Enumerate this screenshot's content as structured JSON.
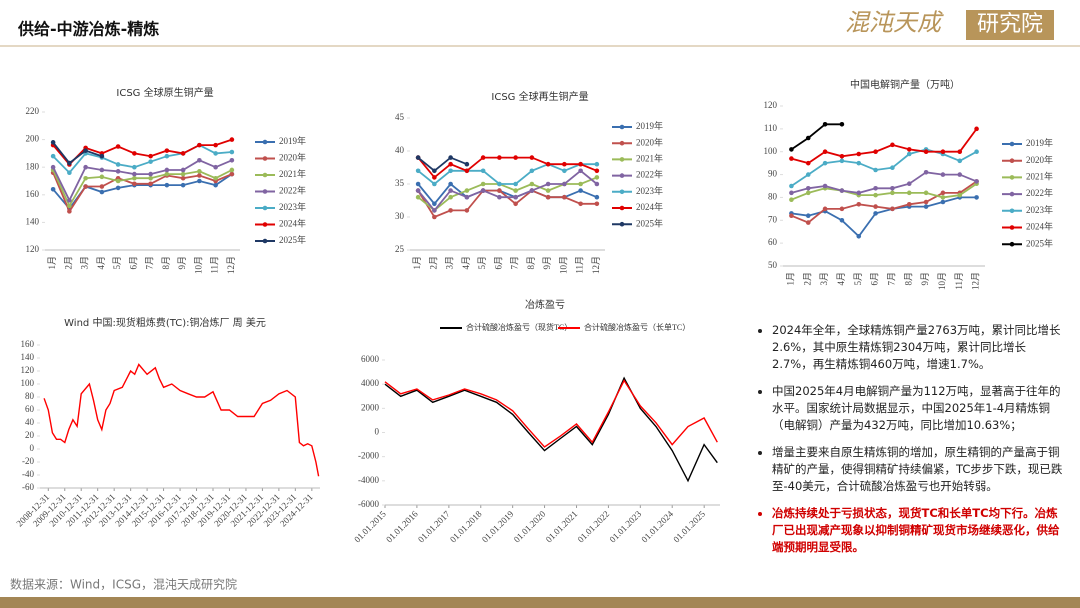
{
  "header": {
    "title": "供给-中游冶炼-精炼"
  },
  "logo": {
    "name": "混沌天成",
    "sub": "研究院"
  },
  "chart_data": [
    {
      "type": "line",
      "title": "ICSG 全球原生铜产量",
      "markers": true,
      "legend": "right",
      "categories": [
        "1月",
        "2月",
        "3月",
        "4月",
        "5月",
        "6月",
        "7月",
        "8月",
        "9月",
        "10月",
        "11月",
        "12月"
      ],
      "ylim": [
        120,
        220
      ],
      "yticks": [
        120,
        140,
        160,
        180,
        200,
        220
      ],
      "series": [
        {
          "name": "2019年",
          "color": "#3a6fb0",
          "values": [
            164,
            150,
            166,
            162,
            165,
            167,
            167,
            167,
            167,
            170,
            167,
            175
          ]
        },
        {
          "name": "2020年",
          "color": "#c0504d",
          "values": [
            176,
            148,
            166,
            166,
            172,
            168,
            168,
            174,
            172,
            174,
            170,
            175
          ]
        },
        {
          "name": "2021年",
          "color": "#9bbb59",
          "values": [
            178,
            152,
            172,
            173,
            170,
            172,
            172,
            175,
            175,
            177,
            172,
            178
          ]
        },
        {
          "name": "2022年",
          "color": "#8064a2",
          "values": [
            180,
            156,
            180,
            178,
            177,
            175,
            175,
            178,
            178,
            185,
            180,
            185
          ]
        },
        {
          "name": "2023年",
          "color": "#4bacc6",
          "values": [
            188,
            176,
            190,
            187,
            182,
            180,
            184,
            188,
            190,
            196,
            190,
            191
          ]
        },
        {
          "name": "2024年",
          "color": "#e00000",
          "values": [
            196,
            182,
            194,
            190,
            195,
            190,
            188,
            192,
            190,
            196,
            196,
            200
          ]
        },
        {
          "name": "2025年",
          "color": "#1f3864",
          "values": [
            198,
            183,
            192,
            188,
            null,
            null,
            null,
            null,
            null,
            null,
            null,
            null
          ]
        }
      ]
    },
    {
      "type": "line",
      "title": "ICSG 全球再生铜产量",
      "markers": true,
      "legend": "right",
      "categories": [
        "1月",
        "2月",
        "3月",
        "4月",
        "5月",
        "6月",
        "7月",
        "8月",
        "9月",
        "10月",
        "11月",
        "12月"
      ],
      "ylim": [
        25,
        45
      ],
      "yticks": [
        25,
        30,
        35,
        40,
        45
      ],
      "series": [
        {
          "name": "2019年",
          "color": "#3a6fb0",
          "values": [
            35,
            32,
            35,
            33,
            34,
            34,
            33,
            34,
            33,
            33,
            34,
            33
          ]
        },
        {
          "name": "2020年",
          "color": "#c0504d",
          "values": [
            34,
            30,
            31,
            31,
            34,
            34,
            32,
            34,
            33,
            33,
            32,
            32
          ]
        },
        {
          "name": "2021年",
          "color": "#9bbb59",
          "values": [
            33,
            31,
            33,
            34,
            35,
            35,
            34,
            35,
            34,
            35,
            35,
            36
          ]
        },
        {
          "name": "2022年",
          "color": "#8064a2",
          "values": [
            34,
            31,
            34,
            33,
            34,
            33,
            33,
            34,
            35,
            35,
            37,
            35
          ]
        },
        {
          "name": "2023年",
          "color": "#4bacc6",
          "values": [
            37,
            35,
            37,
            37,
            37,
            35,
            35,
            37,
            38,
            37,
            38,
            38
          ]
        },
        {
          "name": "2024年",
          "color": "#e00000",
          "values": [
            39,
            36,
            38,
            37,
            39,
            39,
            39,
            39,
            38,
            38,
            38,
            37
          ]
        },
        {
          "name": "2025年",
          "color": "#1f3864",
          "values": [
            39,
            37,
            39,
            38,
            null,
            null,
            null,
            null,
            null,
            null,
            null,
            null
          ]
        }
      ]
    },
    {
      "type": "line",
      "title": "中国电解铜产量（万吨）",
      "markers": true,
      "legend": "right",
      "categories": [
        "1月",
        "2月",
        "3月",
        "4月",
        "5月",
        "6月",
        "7月",
        "8月",
        "9月",
        "10月",
        "11月",
        "12月"
      ],
      "ylim": [
        50,
        120
      ],
      "yticks": [
        50,
        60,
        70,
        80,
        90,
        100,
        110,
        120
      ],
      "series": [
        {
          "name": "2019年",
          "color": "#3a6fb0",
          "values": [
            73,
            72,
            74,
            70,
            63,
            73,
            75,
            76,
            76,
            78,
            80,
            80
          ]
        },
        {
          "name": "2020年",
          "color": "#c0504d",
          "values": [
            72,
            69,
            75,
            75,
            77,
            76,
            75,
            77,
            78,
            82,
            82,
            87
          ]
        },
        {
          "name": "2021年",
          "color": "#9bbb59",
          "values": [
            79,
            82,
            84,
            83,
            81,
            81,
            82,
            82,
            82,
            80,
            81,
            86
          ]
        },
        {
          "name": "2022年",
          "color": "#8064a2",
          "values": [
            82,
            84,
            85,
            83,
            82,
            84,
            84,
            86,
            91,
            90,
            90,
            87
          ]
        },
        {
          "name": "2023年",
          "color": "#4bacc6",
          "values": [
            85,
            90,
            95,
            96,
            95,
            92,
            93,
            99,
            101,
            99,
            96,
            100
          ]
        },
        {
          "name": "2024年",
          "color": "#e00000",
          "values": [
            97,
            95,
            100,
            98,
            99,
            100,
            103,
            101,
            100,
            100,
            100,
            110
          ]
        },
        {
          "name": "2025年",
          "color": "#000000",
          "values": [
            101,
            106,
            112,
            112,
            null,
            null,
            null,
            null,
            null,
            null,
            null,
            null
          ]
        }
      ]
    },
    {
      "type": "line",
      "title": "Wind 中国:现货粗炼费(TC):铜冶炼厂 周 美元",
      "markers": false,
      "x": [
        "2008-09-30",
        "2008-12-31",
        "2009-03-31",
        "2009-06-30",
        "2009-09-30",
        "2009-12-31",
        "2010-03-31",
        "2010-06-30",
        "2010-09-30",
        "2010-12-31",
        "2011-06-30",
        "2011-09-30",
        "2011-12-31",
        "2012-03-31",
        "2012-06-30",
        "2012-09-30",
        "2012-12-31",
        "2013-06-30",
        "2013-12-31",
        "2014-03-31",
        "2014-06-30",
        "2014-12-31",
        "2015-06-30",
        "2015-09-30",
        "2015-12-31",
        "2016-06-30",
        "2016-12-31",
        "2017-06-30",
        "2017-12-31",
        "2018-06-30",
        "2018-12-31",
        "2019-06-30",
        "2019-12-31",
        "2020-06-30",
        "2020-12-31",
        "2021-06-30",
        "2021-12-31",
        "2022-06-30",
        "2022-12-31",
        "2023-06-30",
        "2023-12-31",
        "2024-03-31",
        "2024-06-30",
        "2024-09-30",
        "2024-12-31",
        "2025-03-31",
        "2025-05-31"
      ],
      "xlim": [
        "2008-06-30",
        "2025-06-30"
      ],
      "xticks": [
        "2008-12-31",
        "2009-12-31",
        "2010-12-31",
        "2011-12-31",
        "2012-12-31",
        "2013-12-31",
        "2014-12-31",
        "2015-12-31",
        "2016-12-31",
        "2017-12-31",
        "2018-12-31",
        "2019-12-31",
        "2020-12-31",
        "2021-12-31",
        "2022-12-31",
        "2023-12-31",
        "2024-12-31"
      ],
      "ylim": [
        -60,
        160
      ],
      "yticks": [
        -60,
        -40,
        -20,
        0,
        20,
        40,
        60,
        80,
        100,
        120,
        140,
        160
      ],
      "series": [
        {
          "color": "#ff0000",
          "values": [
            78,
            60,
            25,
            15,
            15,
            10,
            30,
            45,
            35,
            85,
            100,
            75,
            45,
            30,
            60,
            70,
            90,
            95,
            120,
            115,
            130,
            115,
            125,
            108,
            95,
            100,
            90,
            85,
            80,
            80,
            88,
            60,
            60,
            50,
            50,
            50,
            70,
            75,
            85,
            90,
            80,
            10,
            5,
            8,
            5,
            -20,
            -42
          ]
        }
      ]
    },
    {
      "type": "line",
      "title": "冶炼盈亏",
      "markers": false,
      "legend": "top",
      "x": [
        "2015-01-01",
        "2015-06-30",
        "2016-01-01",
        "2016-06-30",
        "2017-01-01",
        "2017-06-30",
        "2018-01-01",
        "2018-06-30",
        "2019-01-01",
        "2019-06-30",
        "2020-01-01",
        "2020-06-30",
        "2021-01-01",
        "2021-06-30",
        "2022-01-01",
        "2022-06-30",
        "2023-01-01",
        "2023-06-30",
        "2024-01-01",
        "2024-06-30",
        "2024-12-31",
        "2025-05-31"
      ],
      "xlim": [
        "2015-01-01",
        "2025-07-01"
      ],
      "xticks": [
        "01.01.2015",
        "01.01.2016",
        "01.01.2017",
        "01.01.2018",
        "01.01.2019",
        "01.01.2020",
        "01.01.2021",
        "01.01.2022",
        "01.01.2023",
        "01.01.2024",
        "01.01.2025"
      ],
      "ylim": [
        -6000,
        6000
      ],
      "yticks": [
        -6000,
        -4000,
        -2000,
        0,
        2000,
        4000,
        6000
      ],
      "series": [
        {
          "name": "合计硫酸冶炼盈亏（现货TC）",
          "color": "#000000",
          "values": [
            4000,
            3000,
            3500,
            2500,
            3000,
            3500,
            3000,
            2500,
            1500,
            0,
            -1500,
            -500,
            500,
            -1000,
            1500,
            4500,
            2000,
            500,
            -1500,
            -4000,
            -1000,
            -2500
          ]
        },
        {
          "name": "合计硫酸冶炼盈亏（长单TC）",
          "color": "#ff0000",
          "values": [
            4200,
            3200,
            3600,
            2700,
            3100,
            3600,
            3200,
            2700,
            1800,
            300,
            -1200,
            -300,
            700,
            -800,
            1700,
            4300,
            2200,
            800,
            -1000,
            500,
            1200,
            -800
          ]
        }
      ]
    }
  ],
  "notes": [
    "2024年全年，全球精炼铜产量2763万吨，累计同比增长2.6%，其中原生精炼铜2304万吨，累计同比增长2.7%，再生精炼铜460万吨，增速1.7%。",
    "中国2025年4月电解铜产量为112万吨，显著高于往年的水平。国家统计局数据显示，中国2025年1-4月精炼铜（电解铜）产量为432万吨，同比增加10.63%；",
    "增量主要来自原生精炼铜的增加，原生精铜的产量高于铜精矿的产量，使得铜精矿持续偏紧，TC步步下跌，现已跌至-40美元，合计硫酸冶炼盈亏也开始转弱。",
    "冶炼持续处于亏损状态，现货TC和长单TC均下行。冶炼厂已出现减产现象以抑制铜精矿现货市场继续恶化，供给端预期明显受限。"
  ],
  "source": "数据来源：Wind，ICSG，混沌天成研究院"
}
